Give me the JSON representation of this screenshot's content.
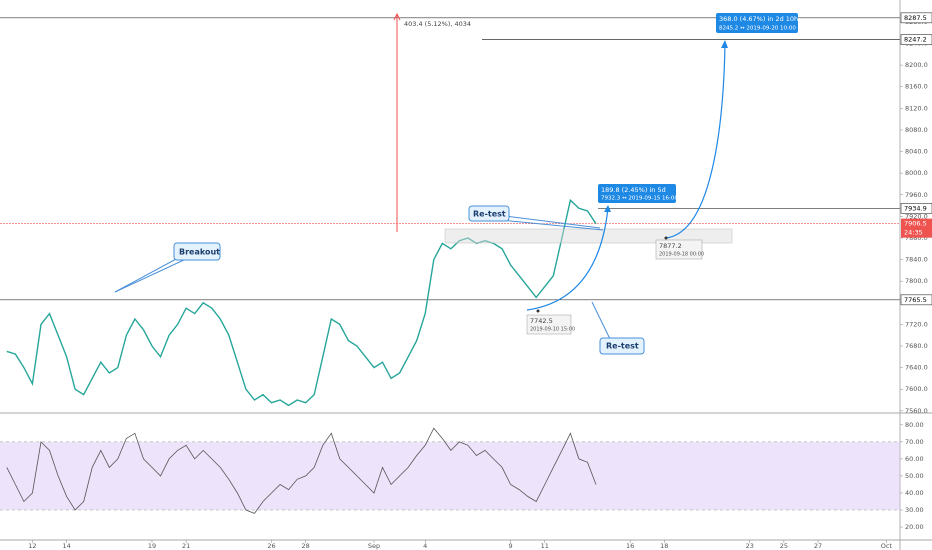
{
  "chart_data": [
    {
      "type": "line",
      "color": "#26a69a",
      "x": [
        -1.5,
        -1,
        -0.5,
        0,
        0.5,
        1,
        1.5,
        2,
        2.5,
        3,
        3.5,
        4,
        4.5,
        5,
        5.5,
        6,
        6.5,
        7,
        7.5,
        8,
        8.5,
        9,
        9.5,
        10,
        10.5,
        11,
        11.5,
        12,
        12.5,
        13,
        13.5,
        14,
        14.5,
        15,
        15.5,
        16,
        16.5,
        17,
        17.5,
        18,
        18.5,
        19,
        19.5,
        20,
        20.5,
        21,
        21.5,
        22,
        22.5,
        23,
        23.5,
        24,
        24.5,
        25,
        25.5,
        26,
        26.5,
        27,
        27.5,
        28,
        28.5,
        29,
        29.5,
        30,
        30.5,
        31,
        31.5,
        32,
        32.5,
        33
      ],
      "values": [
        7670,
        7665,
        7640,
        7610,
        7720,
        7740,
        7700,
        7660,
        7600,
        7590,
        7620,
        7650,
        7630,
        7640,
        7700,
        7730,
        7710,
        7680,
        7660,
        7700,
        7720,
        7750,
        7740,
        7760,
        7750,
        7730,
        7700,
        7650,
        7600,
        7580,
        7590,
        7575,
        7580,
        7570,
        7580,
        7575,
        7590,
        7660,
        7730,
        7720,
        7690,
        7680,
        7660,
        7640,
        7650,
        7620,
        7630,
        7660,
        7690,
        7740,
        7840,
        7870,
        7860,
        7875,
        7880,
        7870,
        7875,
        7870,
        7860,
        7830,
        7810,
        7790,
        7770,
        7790,
        7810,
        7880,
        7950,
        7935,
        7930,
        7906.5
      ],
      "xlim": [
        -1.9,
        50.8
      ],
      "xticks": [
        {
          "value": 0,
          "label": "12"
        },
        {
          "value": 2,
          "label": "14"
        },
        {
          "value": 7,
          "label": "19"
        },
        {
          "value": 9,
          "label": "21"
        },
        {
          "value": 14,
          "label": "26"
        },
        {
          "value": 16,
          "label": "28"
        },
        {
          "value": 20,
          "label": "Sep"
        },
        {
          "value": 23,
          "label": "4"
        },
        {
          "value": 28,
          "label": "9"
        },
        {
          "value": 30,
          "label": "11"
        },
        {
          "value": 35,
          "label": "16"
        },
        {
          "value": 37,
          "label": "18"
        },
        {
          "value": 42,
          "label": "23"
        },
        {
          "value": 44,
          "label": "25"
        },
        {
          "value": 46,
          "label": "27"
        },
        {
          "value": 50,
          "label": "Oct"
        }
      ],
      "ylim": [
        7556,
        8302
      ],
      "yticks": [
        {
          "value": 7560,
          "label": "7560.0"
        },
        {
          "value": 7600,
          "label": "7600.0"
        },
        {
          "value": 7640,
          "label": "7640.0"
        },
        {
          "value": 7680,
          "label": "7680.0"
        },
        {
          "value": 7720,
          "label": "7720.0"
        },
        {
          "value": 7760,
          "label": "7760.0"
        },
        {
          "value": 7800,
          "label": "7800.0"
        },
        {
          "value": 7840,
          "label": "7840.0"
        },
        {
          "value": 7880,
          "label": "7880.0"
        },
        {
          "value": 7920,
          "label": "7920.0"
        },
        {
          "value": 7960,
          "label": "7960.0"
        },
        {
          "value": 8000,
          "label": "8000.0"
        },
        {
          "value": 8040,
          "label": "8040.0"
        },
        {
          "value": 8080,
          "label": "8080.0"
        },
        {
          "value": 8120,
          "label": "8120.0"
        },
        {
          "value": 8160,
          "label": "8160.0"
        },
        {
          "value": 8200,
          "label": "8200.0"
        },
        {
          "value": 8240,
          "label": "8240.0"
        },
        {
          "value": 8280,
          "label": "8280.0"
        }
      ],
      "levels": [
        8287.5,
        8247.2,
        7934.9,
        7765.5
      ],
      "last_price": 7906.5,
      "last_price_color": "#ef5350",
      "countdown": "24:35",
      "annotations": {
        "breakout": "Breakout",
        "retest_1": "Re-test",
        "retest_2": "Re-test",
        "measure_big": "368.0 (4.67%) in 2d 10h",
        "measure_big_sub": "8245.2 ↔ 2019-09-20 10:00",
        "measure_small": "189.8 (2.45%) in 5d",
        "measure_small_sub": "7932.3 ↔ 2019-09-15 16:00",
        "point_a": "7877.2",
        "point_a_date": "2019-09-18 00:00",
        "point_b": "7742.5",
        "point_b_date": "2019-09-10 15:00",
        "range": "403.4 (5.12%), 4034"
      }
    },
    {
      "type": "line",
      "color": "#555555",
      "x": [
        -1.5,
        -1,
        -0.5,
        0,
        0.5,
        1,
        1.5,
        2,
        2.5,
        3,
        3.5,
        4,
        4.5,
        5,
        5.5,
        6,
        6.5,
        7,
        7.5,
        8,
        8.5,
        9,
        9.5,
        10,
        10.5,
        11,
        11.5,
        12,
        12.5,
        13,
        13.5,
        14,
        14.5,
        15,
        15.5,
        16,
        16.5,
        17,
        17.5,
        18,
        18.5,
        19,
        19.5,
        20,
        20.5,
        21,
        21.5,
        22,
        22.5,
        23,
        23.5,
        24,
        24.5,
        25,
        25.5,
        26,
        26.5,
        27,
        27.5,
        28,
        28.5,
        29,
        29.5,
        30,
        30.5,
        31,
        31.5,
        32,
        32.5,
        33
      ],
      "values": [
        55,
        45,
        35,
        40,
        70,
        65,
        50,
        38,
        30,
        35,
        55,
        65,
        55,
        60,
        72,
        75,
        60,
        55,
        50,
        60,
        65,
        68,
        60,
        65,
        60,
        55,
        48,
        40,
        30,
        28,
        35,
        40,
        45,
        42,
        48,
        50,
        55,
        68,
        75,
        60,
        55,
        50,
        45,
        40,
        55,
        45,
        50,
        55,
        62,
        68,
        78,
        72,
        65,
        70,
        68,
        62,
        65,
        60,
        55,
        45,
        42,
        38,
        35,
        45,
        55,
        65,
        75,
        60,
        58,
        45
      ],
      "xlim": [
        -1.9,
        50.8
      ],
      "ylim": [
        12.4,
        84
      ],
      "yticks": [
        {
          "value": 20,
          "label": "20.00"
        },
        {
          "value": 30,
          "label": "30.00"
        },
        {
          "value": 40,
          "label": "40.00"
        },
        {
          "value": 50,
          "label": "50.00"
        },
        {
          "value": 60,
          "label": "60.00"
        },
        {
          "value": 70,
          "label": "70.00"
        },
        {
          "value": 80,
          "label": "80.00"
        }
      ],
      "band": [
        30,
        70
      ],
      "band_color": "#ede3fb"
    }
  ]
}
